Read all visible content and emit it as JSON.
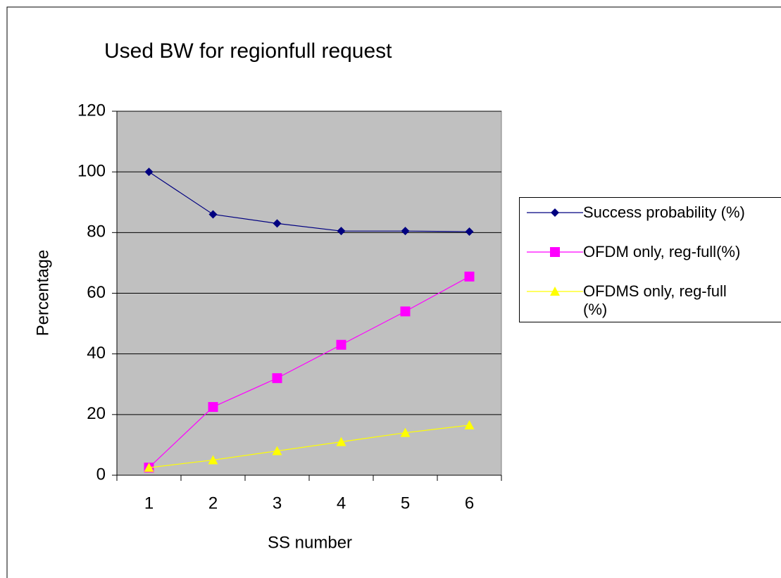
{
  "chart_data": {
    "type": "line",
    "title": "Used BW for regionfull request",
    "x_label": "SS number",
    "y_label": "Percentage",
    "categories": [
      "1",
      "2",
      "3",
      "4",
      "5",
      "6"
    ],
    "series": [
      {
        "name": "Success probability (%)",
        "color": "#000080",
        "marker": "diamond",
        "values": [
          100,
          86,
          83,
          80.5,
          80.5,
          80.3
        ]
      },
      {
        "name": "OFDM only, reg-full(%)",
        "color": "#ff00ff",
        "marker": "square",
        "values": [
          2.5,
          22.5,
          32,
          43,
          54,
          65.5
        ]
      },
      {
        "name": "OFDMS only, reg-full (%)",
        "color": "#ffff00",
        "marker": "triangle",
        "values": [
          2.5,
          5,
          8,
          11,
          14,
          16.5
        ]
      }
    ],
    "ylim": [
      0,
      120
    ],
    "yticks": [
      0,
      20,
      40,
      60,
      80,
      100,
      120
    ],
    "grid": true,
    "legend": "right"
  }
}
